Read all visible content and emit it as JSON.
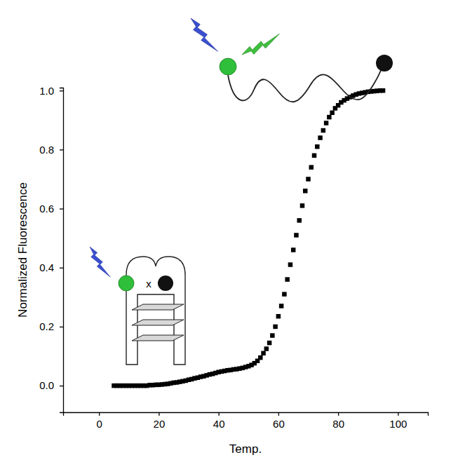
{
  "chart_data": {
    "type": "scatter",
    "x_label": "Temp.",
    "y_label": "Normalized Fluorescence",
    "annotations": [
      "x"
    ],
    "marker": "square",
    "color": "#000000",
    "xlim": [
      -12,
      110
    ],
    "ylim": [
      -0.09,
      1.01
    ],
    "xticks": [
      0,
      20,
      40,
      60,
      80,
      100
    ],
    "yticks": [
      {
        "value": 0,
        "label": "0.0"
      },
      {
        "value": 0.2,
        "label": "0.2"
      },
      {
        "value": 0.4,
        "label": "0.4"
      },
      {
        "value": 0.6,
        "label": "0.6"
      },
      {
        "value": 0.8,
        "label": "0.8"
      },
      {
        "value": 1.0,
        "label": "1.0"
      }
    ],
    "x": [
      5,
      6,
      7,
      8,
      9,
      10,
      11,
      12,
      13,
      14,
      15,
      16,
      17,
      18,
      19,
      20,
      21,
      22,
      23,
      24,
      25,
      26,
      27,
      28,
      29,
      30,
      31,
      32,
      33,
      34,
      35,
      36,
      37,
      38,
      39,
      40,
      41,
      42,
      43,
      44,
      45,
      46,
      47,
      48,
      49,
      50,
      51,
      52,
      53,
      54,
      55,
      56,
      57,
      58,
      59,
      60,
      61,
      62,
      63,
      64,
      65,
      66,
      67,
      68,
      69,
      70,
      71,
      72,
      73,
      74,
      75,
      76,
      77,
      78,
      79,
      80,
      81,
      82,
      83,
      84,
      85,
      86,
      87,
      88,
      89,
      90,
      91,
      92,
      93,
      94,
      95
    ],
    "values": [
      0,
      0,
      0,
      0,
      0,
      0,
      0,
      0,
      0,
      0,
      0,
      0,
      0.002,
      0.002,
      0.003,
      0.003,
      0.004,
      0.005,
      0.006,
      0.008,
      0.01,
      0.011,
      0.013,
      0.015,
      0.017,
      0.02,
      0.022,
      0.025,
      0.027,
      0.03,
      0.032,
      0.035,
      0.038,
      0.04,
      0.043,
      0.046,
      0.048,
      0.05,
      0.052,
      0.053,
      0.055,
      0.056,
      0.058,
      0.06,
      0.063,
      0.066,
      0.07,
      0.076,
      0.084,
      0.095,
      0.11,
      0.125,
      0.145,
      0.17,
      0.2,
      0.235,
      0.27,
      0.31,
      0.36,
      0.41,
      0.46,
      0.51,
      0.56,
      0.61,
      0.66,
      0.7,
      0.74,
      0.78,
      0.81,
      0.84,
      0.865,
      0.89,
      0.91,
      0.925,
      0.94,
      0.95,
      0.96,
      0.967,
      0.973,
      0.978,
      0.983,
      0.987,
      0.99,
      0.992,
      0.994,
      0.996,
      0.997,
      0.998,
      0.999,
      1.0,
      1.0
    ]
  }
}
